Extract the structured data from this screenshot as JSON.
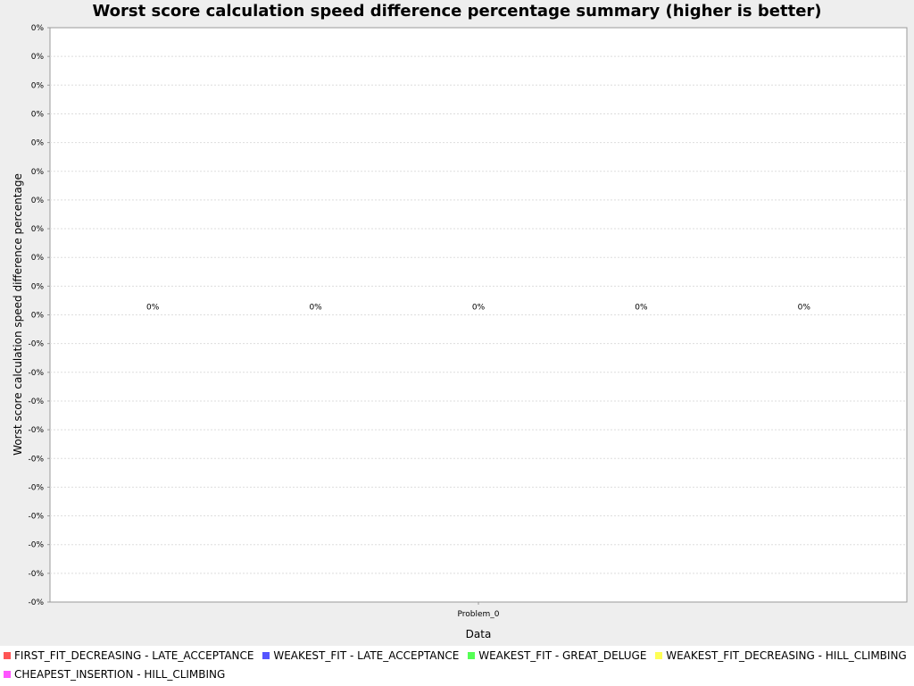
{
  "chart_data": {
    "type": "bar",
    "title": "Worst score calculation speed difference percentage summary (higher is better)",
    "xlabel": "Data",
    "ylabel": "Worst score calculation speed difference percentage",
    "categories": [
      "Problem_0"
    ],
    "series": [
      {
        "name": "FIRST_FIT_DECREASING - LATE_ACCEPTANCE",
        "values": [
          0
        ],
        "color": "#ff5555",
        "label": "0%"
      },
      {
        "name": "WEAKEST_FIT - LATE_ACCEPTANCE",
        "values": [
          0
        ],
        "color": "#5555ff",
        "label": "0%"
      },
      {
        "name": "WEAKEST_FIT - GREAT_DELUGE",
        "values": [
          0
        ],
        "color": "#55ff55",
        "label": "0%"
      },
      {
        "name": "WEAKEST_FIT_DECREASING - HILL_CLIMBING",
        "values": [
          0
        ],
        "color": "#ffff55",
        "label": "0%"
      },
      {
        "name": "CHEAPEST_INSERTION - HILL_CLIMBING",
        "values": [
          0
        ],
        "color": "#ff55ff",
        "label": "0%"
      }
    ],
    "yticks": [
      "0%",
      "0%",
      "0%",
      "0%",
      "0%",
      "0%",
      "0%",
      "0%",
      "0%",
      "0%",
      "0%",
      "-0%",
      "-0%",
      "-0%",
      "-0%",
      "-0%",
      "-0%",
      "-0%",
      "-0%",
      "-0%",
      "-0%"
    ],
    "grid": true,
    "legend": "bottom"
  }
}
